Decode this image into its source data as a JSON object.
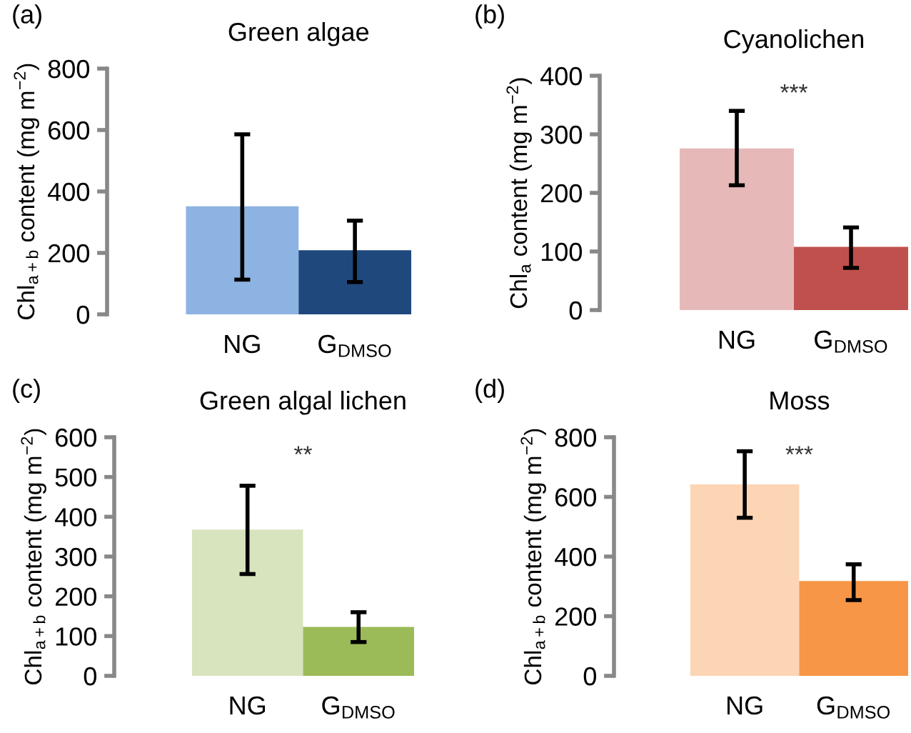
{
  "chart_data": [
    {
      "type": "bar",
      "title": "Green algae",
      "ylabel": "Chl$_{a+b}$ content (mg m$^{−2}$)",
      "categories": [
        "NG",
        "G$_{DMSO}$"
      ],
      "values": [
        352,
        209
      ],
      "colors": [
        "#8db3e2",
        "#1f497d"
      ],
      "errors": [
        [
          113,
          586
        ],
        [
          105,
          305
        ]
      ],
      "ylim": [
        0,
        800
      ],
      "yticks": [
        0,
        200,
        400,
        600,
        800
      ],
      "annotations": [
        "(a)"
      ]
    },
    {
      "type": "bar",
      "title": "Cyanolichen",
      "ylabel": "Chl$_{a}$ content (mg m$^{−2}$)",
      "categories": [
        "NG",
        "G$_{DMSO}$"
      ],
      "values": [
        276,
        108
      ],
      "colors": [
        "#e6b9b8",
        "#c0504d"
      ],
      "errors": [
        [
          213,
          340
        ],
        [
          72,
          141
        ]
      ],
      "ylim": [
        0,
        400
      ],
      "yticks": [
        0,
        100,
        200,
        300,
        400
      ],
      "annotations": [
        "(b)",
        "***"
      ]
    },
    {
      "type": "bar",
      "title": "Green algal lichen",
      "ylabel": "Chl$_{a+b}$ content (mg m$^{−2}$)",
      "categories": [
        "NG",
        "G$_{DMSO}$"
      ],
      "values": [
        368,
        123
      ],
      "colors": [
        "#d7e4bd",
        "#9bbb59"
      ],
      "errors": [
        [
          256,
          478
        ],
        [
          85,
          160
        ]
      ],
      "ylim": [
        0,
        600
      ],
      "yticks": [
        0,
        100,
        200,
        300,
        400,
        500,
        600
      ],
      "annotations": [
        "(c)",
        "**"
      ]
    },
    {
      "type": "bar",
      "title": "Moss",
      "ylabel": "Chl$_{a+b}$ content (mg m$^{−2}$)",
      "categories": [
        "NG",
        "G$_{DMSO}$"
      ],
      "values": [
        642,
        318
      ],
      "colors": [
        "#fcd5b5",
        "#f79646"
      ],
      "errors": [
        [
          530,
          753
        ],
        [
          254,
          374
        ]
      ],
      "ylim": [
        0,
        800
      ],
      "yticks": [
        0,
        200,
        400,
        600,
        800
      ],
      "annotations": [
        "(d)",
        "***"
      ]
    }
  ]
}
